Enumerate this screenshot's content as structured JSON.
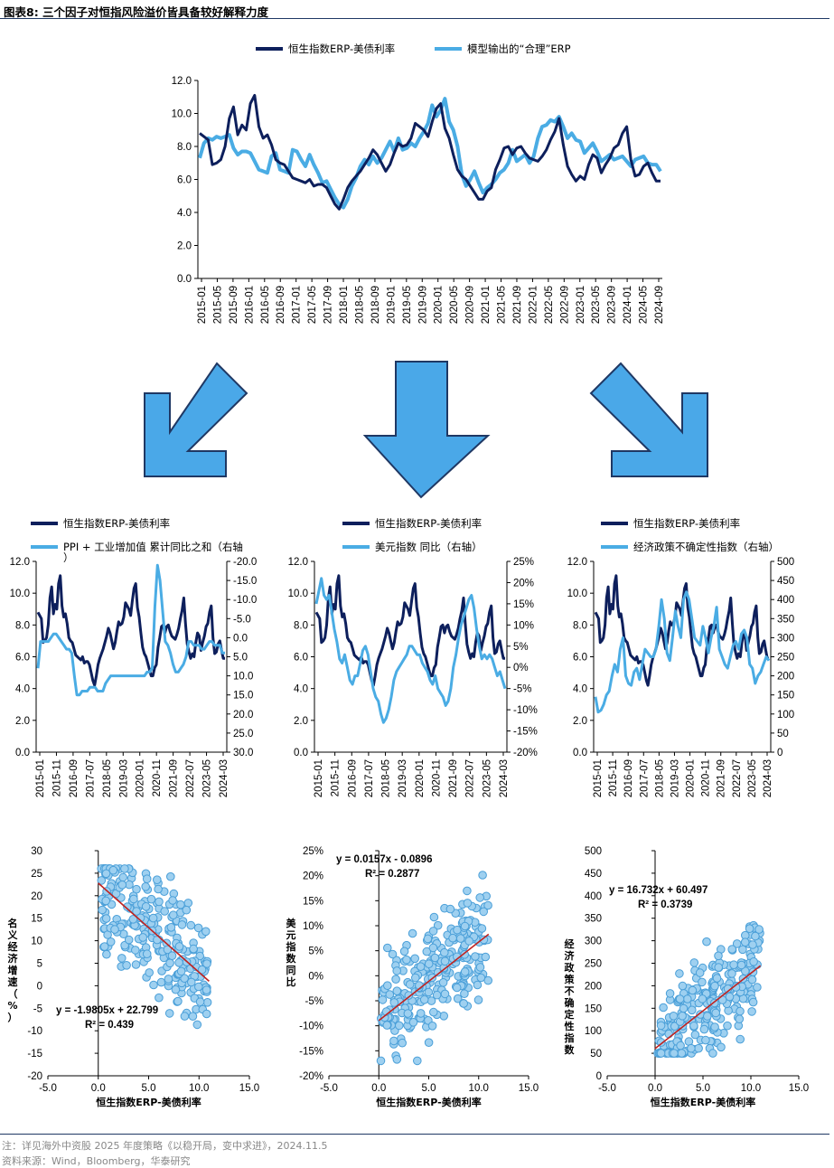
{
  "figure": {
    "title": "图表8:  三个因子对恒指风险溢价皆具备较好解释力度",
    "note": "注：详见海外中资股 2025 年度策略《以稳开局，变中求进》，2024.11.5",
    "source": "资料来源：Wind，Bloomberg，华泰研究"
  },
  "colors": {
    "dark": "#0d1f5c",
    "light": "#4aace4",
    "arrow_fill": "#4aa8e8",
    "arrow_stroke": "#1f3864",
    "fit": "#c0221f"
  },
  "arrows": [
    "arrow-down-left-icon",
    "arrow-down-icon",
    "arrow-down-right-icon"
  ],
  "chart_data": [
    {
      "type": "line",
      "legend": [
        "恒生指数ERP-美债利率",
        "模型输出的“合理”ERP"
      ],
      "ylim": [
        0,
        12
      ],
      "yticks": [
        "0.0",
        "2.0",
        "4.0",
        "6.0",
        "8.0",
        "10.0",
        "12.0"
      ],
      "xticks": [
        "2015-01",
        "2015-05",
        "2015-09",
        "2016-01",
        "2016-05",
        "2016-09",
        "2017-01",
        "2017-05",
        "2017-09",
        "2018-01",
        "2018-05",
        "2018-09",
        "2019-01",
        "2019-05",
        "2019-09",
        "2020-01",
        "2020-05",
        "2020-09",
        "2021-01",
        "2021-05",
        "2021-09",
        "2022-01",
        "2022-05",
        "2022-09",
        "2023-01",
        "2023-05",
        "2023-09",
        "2024-01",
        "2024-05",
        "2024-09"
      ],
      "series": [
        {
          "name": "恒生指数ERP-美债利率",
          "values": [
            8.8,
            8.6,
            8.4,
            6.9,
            7.0,
            7.2,
            8.0,
            9.7,
            10.4,
            8.7,
            9.3,
            9.0,
            10.6,
            11.1,
            9.2,
            8.5,
            8.7,
            8.1,
            7.2,
            7.0,
            6.9,
            6.5,
            6.1,
            6.0,
            5.9,
            5.8,
            6.0,
            5.6,
            5.7,
            5.7,
            5.5,
            5.0,
            4.5,
            4.2,
            4.8,
            5.5,
            5.9,
            6.2,
            6.5,
            6.9,
            7.3,
            7.8,
            7.5,
            7.0,
            6.5,
            6.9,
            7.6,
            8.2,
            8.0,
            8.1,
            8.5,
            9.4,
            9.2,
            9.0,
            8.6,
            9.5,
            10.3,
            10.6,
            9.1,
            8.5,
            7.5,
            6.6,
            6.2,
            6.0,
            5.6,
            5.2,
            4.8,
            4.8,
            5.3,
            5.5,
            6.6,
            7.2,
            7.9,
            8.0,
            7.5,
            7.9,
            8.0,
            7.6,
            7.3,
            7.2,
            7.1,
            7.4,
            7.8,
            8.4,
            8.9,
            9.7,
            8.1,
            6.8,
            6.3,
            5.9,
            6.2,
            6.0,
            6.9,
            7.5,
            7.3,
            6.4,
            6.9,
            7.3,
            7.9,
            8.1,
            8.8,
            9.2,
            7.2,
            6.2,
            6.3,
            6.8,
            7.0,
            6.4,
            5.9,
            5.9
          ]
        },
        {
          "name": "模型输出的“合理”ERP",
          "values": [
            7.3,
            8.2,
            8.5,
            8.4,
            8.6,
            8.5,
            8.6,
            8.7,
            7.9,
            7.5,
            7.7,
            7.7,
            7.6,
            7.1,
            6.6,
            6.5,
            6.4,
            7.4,
            7.6,
            6.6,
            6.5,
            6.4,
            7.8,
            7.7,
            7.2,
            6.8,
            7.5,
            6.9,
            6.4,
            5.8,
            5.9,
            5.4,
            4.9,
            4.5,
            4.3,
            4.8,
            5.6,
            6.1,
            6.8,
            7.2,
            6.9,
            7.4,
            7.0,
            7.3,
            7.8,
            8.3,
            7.7,
            8.5,
            7.8,
            7.9,
            8.2,
            8.0,
            8.5,
            8.9,
            9.4,
            10.5,
            9.8,
            10.2,
            10.9,
            9.5,
            9.0,
            8.0,
            6.3,
            5.6,
            6.0,
            6.5,
            5.8,
            5.2,
            5.5,
            5.7,
            6.0,
            6.4,
            6.6,
            7.0,
            7.8,
            7.1,
            7.3,
            7.5,
            7.0,
            7.4,
            8.5,
            9.2,
            9.3,
            9.6,
            9.5,
            9.8,
            9.2,
            8.5,
            8.8,
            8.4,
            8.3,
            7.6,
            7.9,
            8.2,
            7.7,
            7.1,
            7.3,
            7.5,
            7.2,
            7.3,
            7.4,
            7.1,
            6.8,
            7.2,
            7.3,
            7.4,
            7.0,
            6.9,
            6.9,
            6.5
          ]
        }
      ]
    },
    {
      "type": "line",
      "legend": [
        "恒生指数ERP-美债利率",
        "PPI + 工业增加值 累计同比之和（右轴）"
      ],
      "ylim_left": [
        0,
        12
      ],
      "yticks_left": [
        "0.0",
        "2.0",
        "4.0",
        "6.0",
        "8.0",
        "10.0",
        "12.0"
      ],
      "ylim_right_reversed": [
        -20,
        30
      ],
      "yticks_right": [
        "-20.0",
        "-15.0",
        "-10.0",
        "-5.0",
        "0.0",
        "5.0",
        "10.0",
        "15.0",
        "20.0",
        "25.0",
        "30.0"
      ],
      "xticks": [
        "2015-01",
        "2015-11",
        "2016-09",
        "2017-07",
        "2018-05",
        "2019-03",
        "2020-01",
        "2020-11",
        "2021-09",
        "2022-07",
        "2023-05",
        "2024-03"
      ],
      "series": [
        {
          "name": "PPI + 工业增加值 累计同比之和（右轴）",
          "values": [
            8,
            1,
            1,
            1,
            1,
            0,
            -1,
            -1,
            0,
            1,
            2,
            3,
            3,
            4,
            10,
            15,
            15,
            14,
            14,
            14,
            13,
            13,
            13,
            14,
            14,
            14,
            12,
            11,
            10,
            10,
            10,
            10,
            10,
            10,
            10,
            10,
            10,
            10,
            10,
            10,
            10,
            10,
            9,
            9,
            8,
            -8,
            -19,
            -15,
            -7,
            1,
            2,
            4,
            7,
            9,
            9,
            8,
            7,
            5,
            1,
            1,
            2,
            2,
            2,
            3,
            3,
            2,
            1,
            1,
            2,
            2,
            2,
            4,
            4
          ]
        }
      ]
    },
    {
      "type": "line",
      "legend": [
        "恒生指数ERP-美债利率",
        "美元指数 同比（右轴）"
      ],
      "ylim_left": [
        0,
        12
      ],
      "yticks_left": [
        "0.0",
        "2.0",
        "4.0",
        "6.0",
        "8.0",
        "10.0",
        "12.0"
      ],
      "ylim_right": [
        -20,
        25
      ],
      "yticks_right": [
        "-20%",
        "-15%",
        "-10%",
        "-5%",
        "0%",
        "5%",
        "10%",
        "15%",
        "20%",
        "25%"
      ],
      "xticks": [
        "2015-01",
        "2015-11",
        "2016-09",
        "2017-07",
        "2018-05",
        "2019-03",
        "2020-01",
        "2020-11",
        "2021-09",
        "2022-07",
        "2023-05",
        "2024-03"
      ],
      "series": [
        {
          "name": "美元指数 同比（右轴）",
          "values": [
            15,
            18,
            21,
            17,
            16,
            17,
            13,
            9,
            6,
            2,
            1,
            3,
            0,
            -3,
            -4,
            -2,
            -2,
            1,
            4,
            5,
            3,
            -1,
            -5,
            -7,
            -8,
            -11,
            -13,
            -12,
            -10,
            -7,
            -3,
            -1,
            0,
            1,
            2,
            3,
            5,
            5,
            4,
            3,
            3,
            1,
            0,
            -1,
            -3,
            -4,
            -2,
            -5,
            -6,
            -7,
            -9,
            -8,
            -5,
            0,
            3,
            7,
            10,
            12,
            14,
            16,
            17,
            14,
            9,
            5,
            2,
            3,
            2,
            3,
            2,
            0,
            -2,
            -1,
            -3,
            -5
          ]
        }
      ]
    },
    {
      "type": "line",
      "legend": [
        "恒生指数ERP-美债利率",
        "经济政策不确定性指数（右轴）"
      ],
      "ylim_left": [
        0,
        12
      ],
      "yticks_left": [
        "0.0",
        "2.0",
        "4.0",
        "6.0",
        "8.0",
        "10.0",
        "12.0"
      ],
      "ylim_right": [
        0,
        500
      ],
      "yticks_right": [
        "0",
        "50",
        "100",
        "150",
        "200",
        "250",
        "300",
        "350",
        "400",
        "450",
        "500"
      ],
      "xticks": [
        "2015-01",
        "2015-11",
        "2016-09",
        "2017-07",
        "2018-05",
        "2019-03",
        "2020-01",
        "2020-11",
        "2021-09",
        "2022-07",
        "2023-05",
        "2024-03"
      ],
      "series": [
        {
          "name": "经济政策不确定性指数（右轴）",
          "values": [
            145,
            105,
            110,
            125,
            150,
            160,
            200,
            230,
            210,
            270,
            300,
            200,
            180,
            175,
            210,
            220,
            190,
            230,
            270,
            260,
            250,
            250,
            270,
            330,
            400,
            350,
            260,
            240,
            300,
            370,
            330,
            300,
            400,
            420,
            400,
            350,
            300,
            290,
            280,
            330,
            300,
            260,
            300,
            330,
            380,
            270,
            250,
            230,
            220,
            250,
            280,
            290,
            270,
            310,
            320,
            300,
            230,
            220,
            180,
            200,
            210,
            230,
            250,
            240
          ]
        }
      ]
    },
    {
      "type": "scatter",
      "xlabel": "恒生指数ERP-美债利率",
      "ylabel": "名义经济增速（%）",
      "xlim": [
        -5,
        15
      ],
      "xticks": [
        "-5.0",
        "0.0",
        "5.0",
        "10.0",
        "15.0"
      ],
      "ylim": [
        -20,
        30
      ],
      "yticks": [
        "-20",
        "-15",
        "-10",
        "-5",
        "0",
        "5",
        "10",
        "15",
        "20",
        "25",
        "30"
      ],
      "fit": {
        "slope": -1.9805,
        "intercept": 22.799,
        "equation": "y = -1.9805x + 22.799",
        "r2": "R² = 0.439"
      }
    },
    {
      "type": "scatter",
      "xlabel": "恒生指数ERP-美债利率",
      "ylabel": "美元指数同比",
      "xlim": [
        -5,
        15
      ],
      "xticks": [
        "-5.0",
        "0.0",
        "5.0",
        "10.0",
        "15.0"
      ],
      "ylim": [
        -0.2,
        0.25
      ],
      "yticks": [
        "-20%",
        "-15%",
        "-10%",
        "-5%",
        "0%",
        "5%",
        "10%",
        "15%",
        "20%",
        "25%"
      ],
      "fit": {
        "slope": 0.0157,
        "intercept": -0.0896,
        "equation": "y = 0.0157x - 0.0896",
        "r2": "R² = 0.2877"
      }
    },
    {
      "type": "scatter",
      "xlabel": "恒生指数ERP-美债利率",
      "ylabel": "经济政策不确定性指数",
      "xlim": [
        -5,
        15
      ],
      "xticks": [
        "-5.0",
        "0.0",
        "5.0",
        "10.0",
        "15.0"
      ],
      "ylim": [
        0,
        500
      ],
      "yticks": [
        "0",
        "50",
        "100",
        "150",
        "200",
        "250",
        "300",
        "350",
        "400",
        "450",
        "500"
      ],
      "fit": {
        "slope": 16.732,
        "intercept": 60.497,
        "equation": "y = 16.732x + 60.497",
        "r2": "R² = 0.3739"
      }
    }
  ]
}
